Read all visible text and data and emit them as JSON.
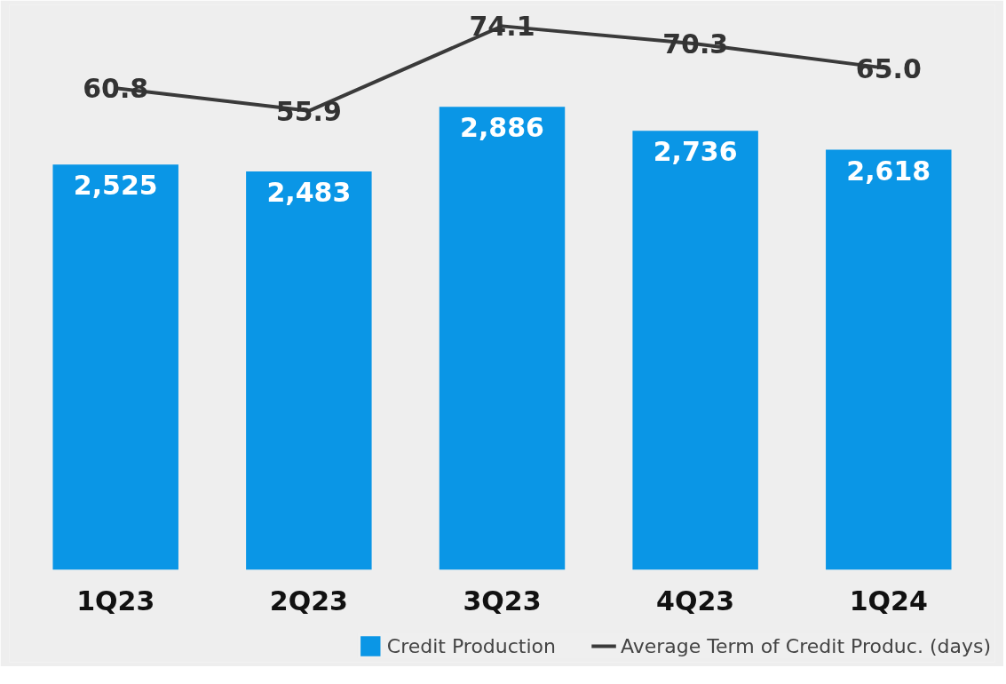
{
  "chart_data": {
    "type": "bar",
    "categories": [
      "1Q23",
      "2Q23",
      "3Q23",
      "4Q23",
      "1Q24"
    ],
    "series": [
      {
        "name": "Credit Production",
        "color": "#0a96e6",
        "values": [
          2525,
          2483,
          2886,
          2736,
          2618
        ],
        "value_labels": [
          "2,525",
          "2,483",
          "2,886",
          "2,736",
          "2,618"
        ]
      },
      {
        "name": "Average Term of Credit Produc. (days)",
        "type": "line",
        "axis": "y2",
        "color": "#3a3a3a",
        "values": [
          60.8,
          55.9,
          74.1,
          70.3,
          65.0
        ],
        "value_labels": [
          "60.8",
          "55.9",
          "74.1",
          "70.3",
          "65.0"
        ]
      }
    ],
    "legend": "bottom",
    "tick_labels": "x",
    "line_style": "solid"
  }
}
